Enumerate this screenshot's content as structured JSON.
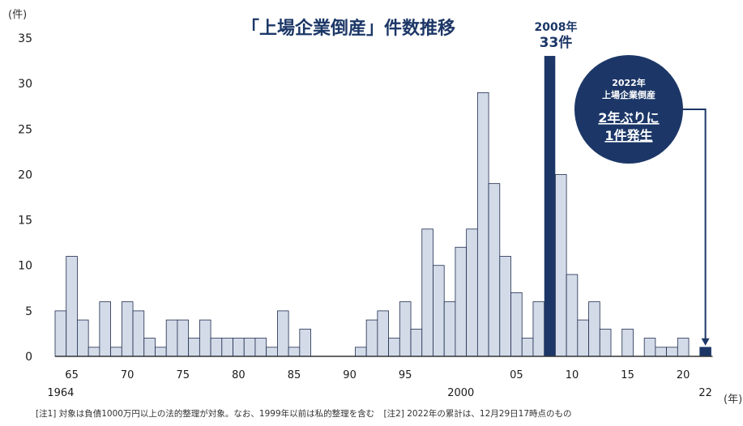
{
  "chart_data": {
    "type": "bar",
    "title": "「上場企業倒産」件数推移",
    "ylabel": "(件)",
    "xlabel": "(年)",
    "ylim": [
      0,
      35
    ],
    "yticks": [
      0,
      5,
      10,
      15,
      20,
      25,
      30,
      35
    ],
    "x": [
      1964,
      1965,
      1966,
      1967,
      1968,
      1969,
      1970,
      1971,
      1972,
      1973,
      1974,
      1975,
      1976,
      1977,
      1978,
      1979,
      1980,
      1981,
      1982,
      1983,
      1984,
      1985,
      1986,
      1987,
      1988,
      1989,
      1990,
      1991,
      1992,
      1993,
      1994,
      1995,
      1996,
      1997,
      1998,
      1999,
      2000,
      2001,
      2002,
      2003,
      2004,
      2005,
      2006,
      2007,
      2008,
      2009,
      2010,
      2011,
      2012,
      2013,
      2014,
      2015,
      2016,
      2017,
      2018,
      2019,
      2020,
      2021,
      2022
    ],
    "values": [
      5,
      11,
      4,
      1,
      6,
      1,
      6,
      5,
      2,
      1,
      4,
      4,
      2,
      4,
      2,
      2,
      2,
      2,
      2,
      1,
      5,
      1,
      3,
      0,
      0,
      0,
      0,
      1,
      4,
      5,
      2,
      6,
      3,
      14,
      10,
      6,
      12,
      14,
      29,
      19,
      11,
      7,
      2,
      6,
      33,
      20,
      9,
      4,
      6,
      3,
      0,
      3,
      0,
      2,
      1,
      1,
      2,
      0,
      1
    ],
    "xtick_labels": [
      {
        "year": 1965,
        "label": "65"
      },
      {
        "year": 1970,
        "label": "70"
      },
      {
        "year": 1975,
        "label": "75"
      },
      {
        "year": 1980,
        "label": "80"
      },
      {
        "year": 1985,
        "label": "85"
      },
      {
        "year": 1990,
        "label": "90"
      },
      {
        "year": 1995,
        "label": "95"
      },
      {
        "year": 2005,
        "label": "05"
      },
      {
        "year": 2010,
        "label": "10"
      },
      {
        "year": 2015,
        "label": "15"
      },
      {
        "year": 2020,
        "label": "20"
      }
    ],
    "xtick_labels_lower": [
      {
        "year": 1964,
        "label": "1964"
      },
      {
        "year": 2000,
        "label": "2000"
      },
      {
        "year": 2022,
        "label": "22"
      }
    ],
    "highlight_years": [
      2008,
      2022
    ],
    "peak_annotation": {
      "year": 2008,
      "line1": "2008年",
      "line2": "33件"
    },
    "circle_annotation": {
      "line1": "2022年",
      "line2": "上場企業倒産",
      "line3": "2年ぶりに",
      "line4": "1件発生"
    },
    "colors": {
      "bar": "#d3dbe8",
      "bar_stroke": "#1f2d4f",
      "highlight": "#1c3767",
      "axis": "#333333",
      "title": "#1c3767"
    }
  },
  "footnotes": {
    "note1": "[注1]  対象は負債1000万円以上の法的整理が対象。なお、1999年以前は私的整理を含む",
    "note2": "[注2]  2022年の累計は、12月29日17時点のもの"
  }
}
